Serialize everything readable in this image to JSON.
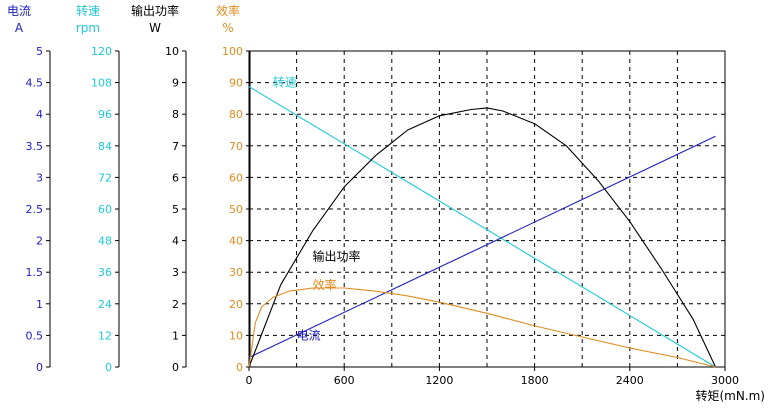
{
  "chart_data": {
    "type": "line",
    "x": [
      0,
      300,
      600,
      900,
      1200,
      1500,
      1800,
      2100,
      2400,
      2700,
      2940
    ],
    "xlabel": "转矩(mN.m)",
    "xticks": [
      0,
      600,
      1200,
      1800,
      2400,
      3000
    ],
    "xlim": [
      0,
      3000
    ],
    "grid": true,
    "axes": [
      {
        "key": "current",
        "title": "电流",
        "unit": "A",
        "color": "#2020c0",
        "ticks": [
          "0",
          "0.5",
          "1",
          "1.5",
          "2",
          "2.5",
          "3",
          "3.5",
          "4",
          "4.5",
          "5"
        ],
        "ylim": [
          0,
          5
        ]
      },
      {
        "key": "speed",
        "title": "转速",
        "unit": "rpm",
        "color": "#20c8d8",
        "ticks": [
          "0",
          "12",
          "24",
          "36",
          "48",
          "60",
          "72",
          "84",
          "96",
          "108",
          "120"
        ],
        "ylim": [
          0,
          120
        ]
      },
      {
        "key": "power",
        "title": "输出功率",
        "unit": "W",
        "color": "#000000",
        "ticks": [
          "0",
          "1",
          "2",
          "3",
          "4",
          "5",
          "6",
          "7",
          "8",
          "9",
          "10"
        ],
        "ylim": [
          0,
          10
        ]
      },
      {
        "key": "efficiency",
        "title": "效率",
        "unit": "%",
        "color": "#e08c20",
        "ticks": [
          "0",
          "10",
          "20",
          "30",
          "40",
          "50",
          "60",
          "70",
          "80",
          "90",
          "100"
        ],
        "ylim": [
          0,
          100
        ]
      }
    ],
    "series": [
      {
        "name": "转速",
        "axis": "speed",
        "color": "#20c8d8",
        "x": [
          0,
          2940
        ],
        "values": [
          106.5,
          0
        ]
      },
      {
        "name": "电流",
        "axis": "current",
        "color": "#2020c0",
        "x": [
          0,
          2940
        ],
        "values": [
          0.15,
          3.65
        ]
      },
      {
        "name": "输出功率",
        "axis": "power",
        "color": "#000000",
        "x": [
          0,
          200,
          400,
          600,
          800,
          1000,
          1200,
          1400,
          1500,
          1600,
          1800,
          2000,
          2200,
          2400,
          2600,
          2800,
          2940
        ],
        "values": [
          0,
          2.6,
          4.3,
          5.7,
          6.7,
          7.5,
          7.95,
          8.15,
          8.2,
          8.1,
          7.7,
          7.0,
          5.9,
          4.6,
          3.1,
          1.5,
          0
        ]
      },
      {
        "name": "效率",
        "axis": "efficiency",
        "color": "#e08c20",
        "x": [
          0,
          40,
          80,
          150,
          250,
          400,
          600,
          800,
          1000,
          1200,
          1500,
          1800,
          2100,
          2400,
          2700,
          2940
        ],
        "values": [
          0,
          14,
          19,
          22,
          24,
          25,
          25,
          24,
          22.5,
          20.5,
          17,
          13,
          9.5,
          6,
          3,
          0
        ]
      }
    ],
    "series_labels": [
      {
        "text": "转速",
        "series": "转速",
        "x": 150,
        "y": 90,
        "axis": "efficiency"
      },
      {
        "text": "输出功率",
        "series": "输出功率",
        "x": 400,
        "y": 35,
        "axis": "efficiency"
      },
      {
        "text": "效率",
        "series": "效率",
        "x": 400,
        "y": 26,
        "axis": "efficiency"
      },
      {
        "text": "电流",
        "series": "电流",
        "x": 300,
        "y": 10,
        "axis": "efficiency"
      }
    ]
  }
}
